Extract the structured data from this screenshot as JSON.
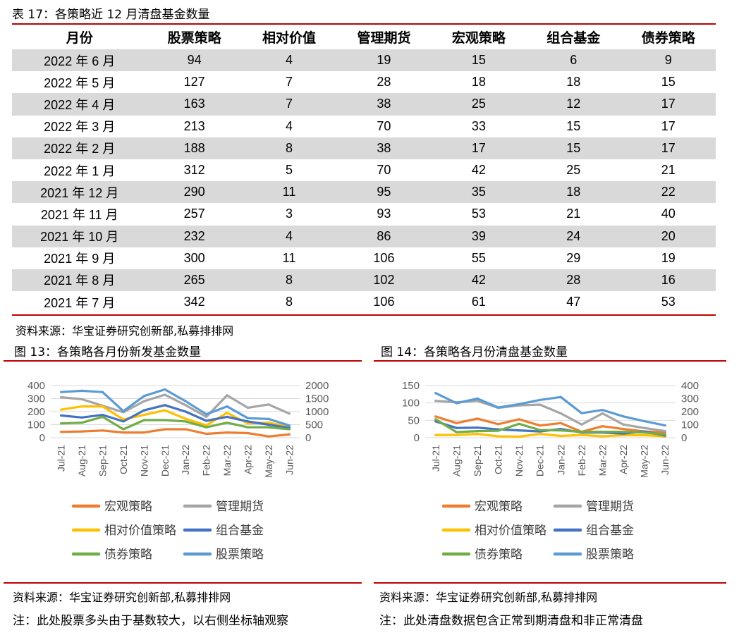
{
  "table": {
    "caption": "表 17：各策略近 12 月清盘基金数量",
    "headers": [
      "月份",
      "股票策略",
      "相对价值",
      "管理期货",
      "宏观策略",
      "组合基金",
      "债券策略"
    ],
    "rows": [
      [
        "2022 年 6 月",
        "94",
        "4",
        "19",
        "15",
        "6",
        "9"
      ],
      [
        "2022 年 5 月",
        "127",
        "7",
        "28",
        "18",
        "18",
        "15"
      ],
      [
        "2022 年 4 月",
        "163",
        "7",
        "38",
        "25",
        "12",
        "17"
      ],
      [
        "2022 年 3 月",
        "213",
        "4",
        "70",
        "33",
        "15",
        "17"
      ],
      [
        "2022 年 2 月",
        "188",
        "8",
        "38",
        "17",
        "15",
        "17"
      ],
      [
        "2022 年 1 月",
        "312",
        "5",
        "70",
        "42",
        "25",
        "21"
      ],
      [
        "2021 年 12 月",
        "290",
        "11",
        "95",
        "35",
        "18",
        "22"
      ],
      [
        "2021 年 11 月",
        "257",
        "3",
        "93",
        "53",
        "21",
        "40"
      ],
      [
        "2021 年 10 月",
        "232",
        "4",
        "86",
        "39",
        "24",
        "20"
      ],
      [
        "2021 年 9 月",
        "300",
        "11",
        "106",
        "55",
        "29",
        "19"
      ],
      [
        "2021 年 8 月",
        "265",
        "8",
        "102",
        "42",
        "28",
        "16"
      ],
      [
        "2021 年 7 月",
        "342",
        "8",
        "106",
        "61",
        "47",
        "53"
      ]
    ],
    "source": "资料来源：华宝证券研究创新部,私募排排网"
  },
  "chart_data": [
    {
      "type": "line",
      "caption": "图 13：各策略各月份新发基金数量",
      "categories": [
        "Jul-21",
        "Aug-21",
        "Sep-21",
        "Oct-21",
        "Nov-21",
        "Dec-21",
        "Jan-22",
        "Feb-22",
        "Mar-22",
        "Apr-22",
        "May-22",
        "Jun-22"
      ],
      "ylim_left": [
        0,
        400
      ],
      "yticks_left": [
        "0",
        "100",
        "200",
        "300",
        "400"
      ],
      "ylim_right": [
        0,
        2000
      ],
      "yticks_right": [
        "0",
        "500",
        "1000",
        "1500",
        "2000"
      ],
      "grid": true,
      "legend_position": "bottom",
      "series": [
        {
          "name": "宏观策略",
          "color": "#ed7d31",
          "axis": "left",
          "values": [
            45,
            48,
            55,
            40,
            40,
            65,
            65,
            30,
            40,
            35,
            10,
            25
          ]
        },
        {
          "name": "管理期货",
          "color": "#a5a5a5",
          "axis": "left",
          "values": [
            310,
            295,
            245,
            195,
            280,
            330,
            250,
            160,
            325,
            230,
            255,
            185
          ]
        },
        {
          "name": "相对价值策略",
          "color": "#ffc000",
          "axis": "left",
          "values": [
            215,
            240,
            240,
            140,
            175,
            210,
            145,
            95,
            190,
            110,
            115,
            85
          ]
        },
        {
          "name": "组合基金",
          "color": "#4472c4",
          "axis": "left",
          "values": [
            170,
            155,
            175,
            125,
            210,
            250,
            200,
            130,
            160,
            125,
            100,
            75
          ]
        },
        {
          "name": "债券策略",
          "color": "#70ad47",
          "axis": "left",
          "values": [
            110,
            115,
            160,
            65,
            135,
            135,
            125,
            80,
            115,
            80,
            80,
            65
          ]
        },
        {
          "name": "股票策略",
          "color": "#5b9bd5",
          "axis": "right",
          "values": [
            1750,
            1800,
            1750,
            1020,
            1600,
            1850,
            1400,
            900,
            1200,
            750,
            720,
            470
          ]
        }
      ],
      "source": "资料来源：华宝证券研究创新部,私募排排网",
      "note": "注：此处股票多头由于基数较大，以右侧坐标轴观察"
    },
    {
      "type": "line",
      "caption": "图 14：各策略各月份清盘基金数量",
      "categories": [
        "Jul-21",
        "Aug-21",
        "Sep-21",
        "Oct-21",
        "Nov-21",
        "Dec-21",
        "Jan-22",
        "Feb-22",
        "Mar-22",
        "Apr-22",
        "May-22",
        "Jun-22"
      ],
      "ylim_left": [
        0,
        150
      ],
      "yticks_left": [
        "0",
        "50",
        "100",
        "150"
      ],
      "ylim_right": [
        0,
        400
      ],
      "yticks_right": [
        "0",
        "100",
        "200",
        "300",
        "400"
      ],
      "grid": true,
      "legend_position": "bottom",
      "series": [
        {
          "name": "宏观策略",
          "color": "#ed7d31",
          "axis": "left",
          "values": [
            61,
            42,
            55,
            39,
            53,
            35,
            42,
            17,
            33,
            25,
            18,
            15
          ]
        },
        {
          "name": "管理期货",
          "color": "#a5a5a5",
          "axis": "left",
          "values": [
            106,
            102,
            106,
            86,
            93,
            95,
            70,
            38,
            70,
            38,
            28,
            19
          ]
        },
        {
          "name": "相对价值策略",
          "color": "#ffc000",
          "axis": "left",
          "values": [
            8,
            8,
            11,
            4,
            3,
            11,
            5,
            8,
            4,
            7,
            7,
            4
          ]
        },
        {
          "name": "组合基金",
          "color": "#4472c4",
          "axis": "left",
          "values": [
            47,
            28,
            29,
            24,
            21,
            18,
            25,
            15,
            15,
            12,
            18,
            6
          ]
        },
        {
          "name": "债券策略",
          "color": "#70ad47",
          "axis": "left",
          "values": [
            53,
            16,
            19,
            20,
            40,
            22,
            21,
            17,
            17,
            17,
            15,
            9
          ]
        },
        {
          "name": "股票策略",
          "color": "#5b9bd5",
          "axis": "right",
          "values": [
            342,
            265,
            300,
            232,
            257,
            290,
            312,
            188,
            213,
            163,
            127,
            94
          ]
        }
      ],
      "source": "资料来源：华宝证券研究创新部,私募排排网",
      "note": "注：此处清盘数据包含正常到期清盘和非正常清盘"
    }
  ]
}
